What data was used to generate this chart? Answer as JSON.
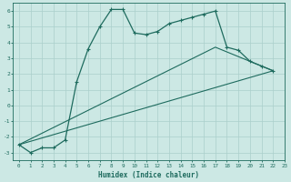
{
  "xlabel": "Humidex (Indice chaleur)",
  "bg_color": "#cce8e4",
  "line_color": "#1e6b5e",
  "grid_color": "#aacfcb",
  "xlim": [
    -0.5,
    23
  ],
  "ylim": [
    -3.5,
    6.5
  ],
  "yticks": [
    -3,
    -2,
    -1,
    0,
    1,
    2,
    3,
    4,
    5,
    6
  ],
  "xticks": [
    0,
    1,
    2,
    3,
    4,
    5,
    6,
    7,
    8,
    9,
    10,
    11,
    12,
    13,
    14,
    15,
    16,
    17,
    18,
    19,
    20,
    21,
    22,
    23
  ],
  "curve_x": [
    0,
    1,
    2,
    3,
    4,
    5,
    6,
    7,
    8,
    9,
    10,
    11,
    12,
    13,
    14,
    15,
    16,
    17,
    18,
    19,
    20,
    21,
    22
  ],
  "curve_y": [
    -2.5,
    -3.0,
    -2.7,
    -2.7,
    -2.2,
    1.5,
    3.6,
    5.0,
    6.1,
    6.1,
    4.6,
    4.5,
    4.7,
    5.2,
    5.4,
    5.6,
    5.8,
    6.0,
    3.7,
    3.5,
    2.8,
    2.5,
    2.2
  ],
  "line1_x": [
    0,
    22
  ],
  "line1_y": [
    -2.5,
    2.2
  ],
  "line2_x": [
    0,
    17,
    22
  ],
  "line2_y": [
    -2.5,
    3.7,
    2.2
  ]
}
